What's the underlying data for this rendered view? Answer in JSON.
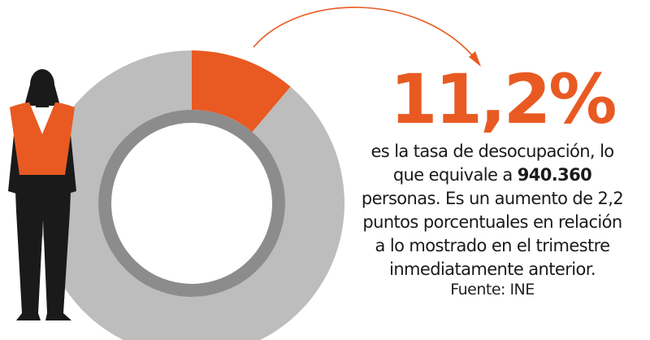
{
  "chart_data": {
    "type": "pie",
    "title": "",
    "slices": [
      {
        "label": "desocupación",
        "value": 11.2
      },
      {
        "label": "",
        "value": 88.8
      }
    ],
    "highlight": "11,2%",
    "colors": {
      "highlight": "#e85a22",
      "rest": "#bdbdbd",
      "inner_ring": "#8c8c8c",
      "figure": "#1a1a1a"
    }
  },
  "text": {
    "line1": "es la tasa de desocupación, lo",
    "line2_pre": "que equivale a ",
    "line2_bold": "940.360",
    "line3": "personas. Es un aumento de 2,2",
    "line4": "puntos porcentuales en relación",
    "line5": "a lo mostrado en el trimestre",
    "line6": "inmediatamente anterior."
  },
  "source": "Fuente: INE",
  "icons": {
    "figure": "woman-figure-icon",
    "arrow": "curved-arrow-icon"
  }
}
